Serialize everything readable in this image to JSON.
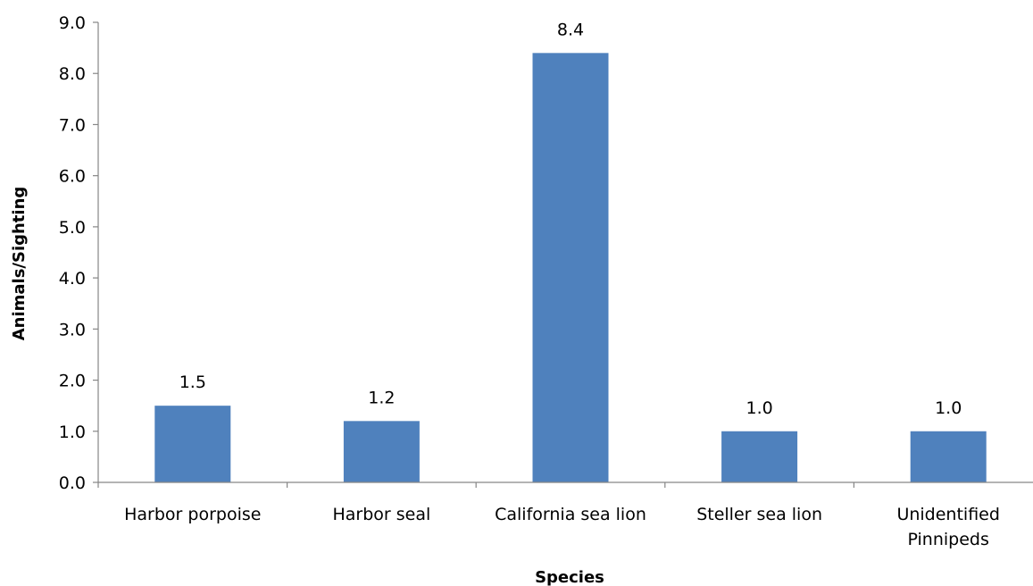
{
  "chart_data": {
    "type": "bar",
    "title": "",
    "xlabel": "Species",
    "ylabel": "Animals/Sighting",
    "categories": [
      "Harbor porpoise",
      "Harbor seal",
      "California sea lion",
      "Steller sea lion",
      "Unidentified Pinnipeds"
    ],
    "category_lines": [
      [
        "Harbor porpoise"
      ],
      [
        "Harbor seal"
      ],
      [
        "California sea lion"
      ],
      [
        "Steller sea lion"
      ],
      [
        "Unidentified",
        "Pinnipeds"
      ]
    ],
    "values": [
      1.5,
      1.2,
      8.4,
      1.0,
      1.0
    ],
    "value_labels": [
      "1.5",
      "1.2",
      "8.4",
      "1.0",
      "1.0"
    ],
    "ylim": [
      0,
      9
    ],
    "yticks": [
      "0.0",
      "1.0",
      "2.0",
      "3.0",
      "4.0",
      "5.0",
      "6.0",
      "7.0",
      "8.0",
      "9.0"
    ],
    "grid": false,
    "legend": "none",
    "bar_color": "#4F81BD",
    "axis_color": "#868686"
  }
}
